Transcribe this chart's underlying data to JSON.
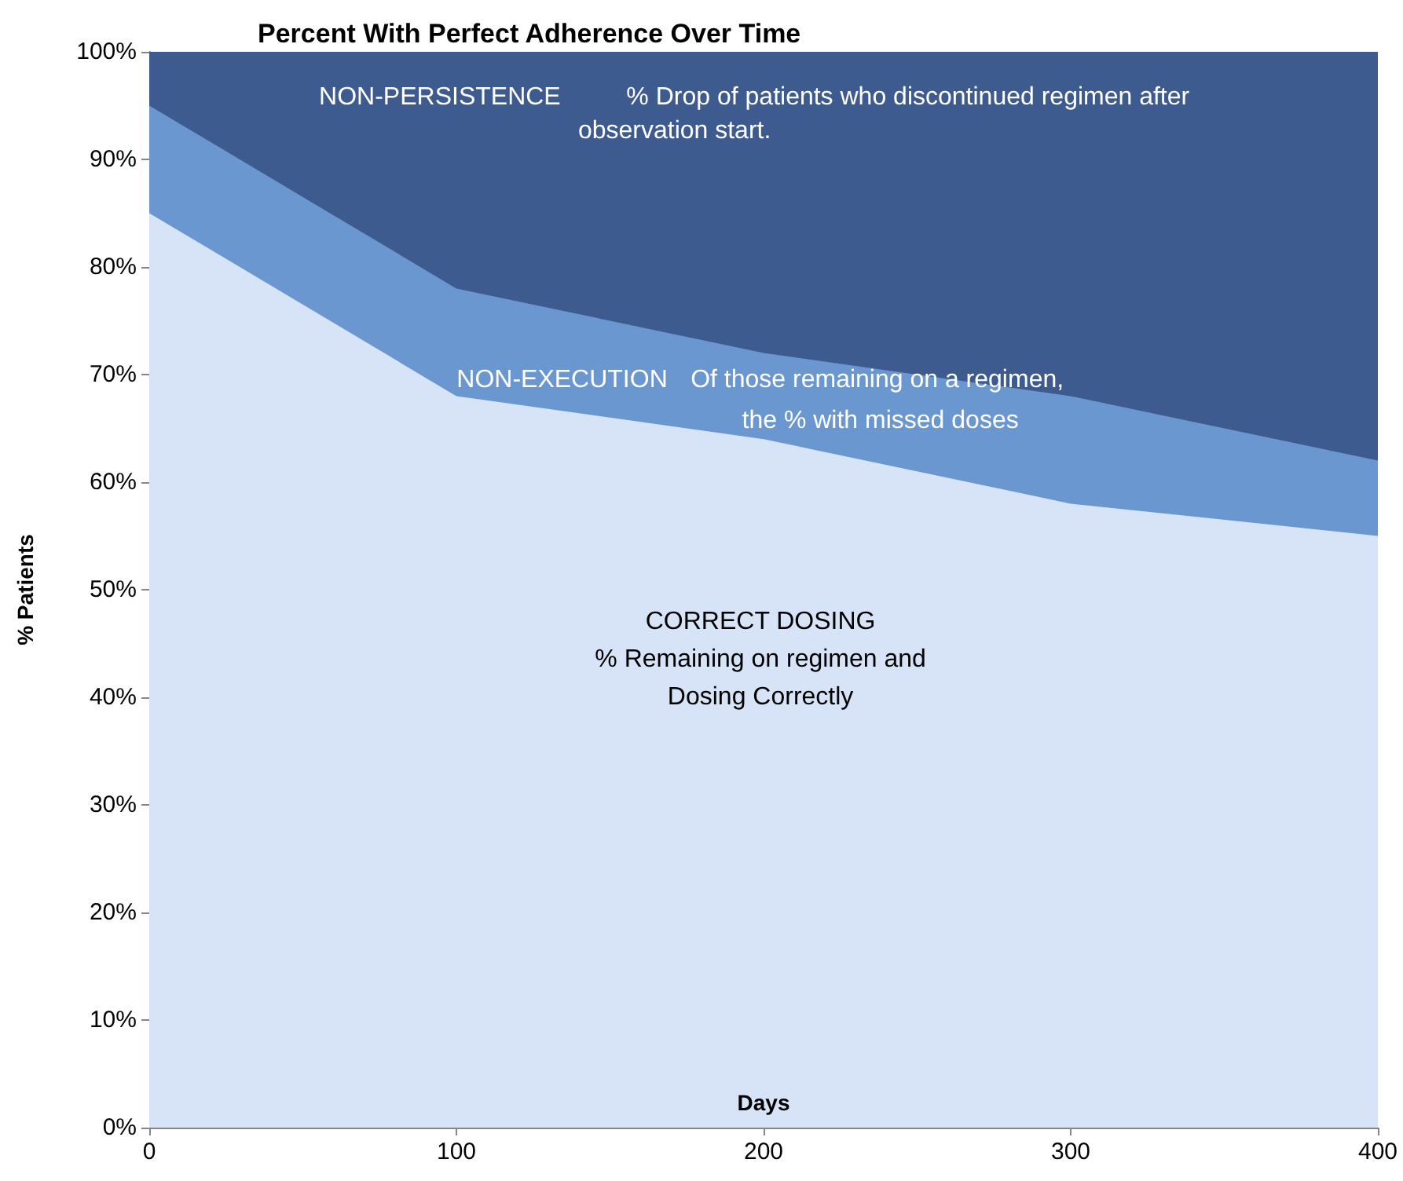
{
  "chart_data": {
    "type": "area",
    "stacked": true,
    "title": "Percent With Perfect Adherence Over Time",
    "xlabel": "Days",
    "ylabel": "% Patients",
    "x": [
      0,
      100,
      200,
      300,
      400
    ],
    "series": [
      {
        "color": "#d7e3f6",
        "values": [
          85,
          68,
          64,
          58,
          55
        ]
      },
      {
        "color": "#6b97d0",
        "values": [
          10,
          10,
          8,
          10,
          7
        ]
      },
      {
        "color": "#3e5b8f",
        "values": [
          5,
          22,
          28,
          32,
          38
        ]
      }
    ],
    "xlim": [
      0,
      400
    ],
    "xticks": [
      0,
      100,
      200,
      300,
      400
    ],
    "ylim": [
      0,
      100
    ],
    "yticks": [
      {
        "value": 0,
        "label": "0%"
      },
      {
        "value": 10,
        "label": "10%"
      },
      {
        "value": 20,
        "label": "20%"
      },
      {
        "value": 30,
        "label": "30%"
      },
      {
        "value": 40,
        "label": "40%"
      },
      {
        "value": 50,
        "label": "50%"
      },
      {
        "value": 60,
        "label": "60%"
      },
      {
        "value": 70,
        "label": "70%"
      },
      {
        "value": 80,
        "label": "80%"
      },
      {
        "value": 90,
        "label": "90%"
      },
      {
        "value": 100,
        "label": "100%"
      }
    ],
    "annotations": [
      "NON-PERSISTENCE",
      "% Drop of patients who discontinued regimen after",
      "observation start.",
      "NON-EXECUTION",
      "Of those remaining on a regimen,",
      "the % with missed doses",
      "CORRECT DOSING",
      "% Remaining on regimen and",
      "Dosing Correctly"
    ],
    "grid": false
  }
}
